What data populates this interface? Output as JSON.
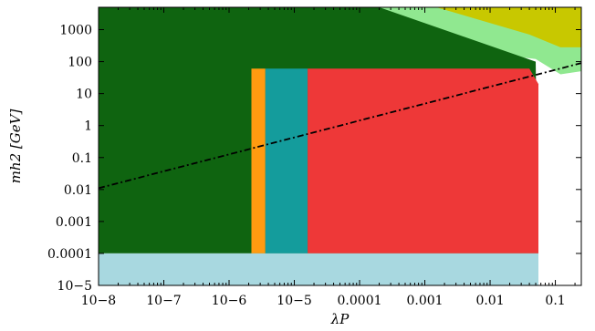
{
  "chart_data": {
    "type": "scatter",
    "title": "",
    "xscale": "log",
    "yscale": "log",
    "xlim": [
      1e-08,
      0.25
    ],
    "ylim": [
      1e-05,
      5000
    ],
    "xlabel": "λP",
    "ylabel": "mh2 [GeV]",
    "x_ticks": [
      {
        "value": 1e-08,
        "label": "10−8"
      },
      {
        "value": 1e-07,
        "label": "10−7"
      },
      {
        "value": 1e-06,
        "label": "10−6"
      },
      {
        "value": 1e-05,
        "label": "10−5"
      },
      {
        "value": 0.0001,
        "label": "0.0001"
      },
      {
        "value": 0.001,
        "label": "0.001"
      },
      {
        "value": 0.01,
        "label": "0.01"
      },
      {
        "value": 0.1,
        "label": "0.1"
      }
    ],
    "y_ticks": [
      {
        "value": 1e-05,
        "label": "10−5"
      },
      {
        "value": 0.0001,
        "label": "0.0001"
      },
      {
        "value": 0.001,
        "label": "0.001"
      },
      {
        "value": 0.01,
        "label": "0.01"
      },
      {
        "value": 0.1,
        "label": "0.1"
      },
      {
        "value": 1,
        "label": "1"
      },
      {
        "value": 10,
        "label": "10"
      },
      {
        "value": 100,
        "label": "100"
      },
      {
        "value": 1000,
        "label": "1000"
      }
    ],
    "series": [
      {
        "color": "#90e890",
        "region": "band upper edge",
        "polygon": [
          [
            1e-08,
            5000
          ],
          [
            0.25,
            5000
          ],
          [
            0.25,
            50
          ],
          [
            0.12,
            40
          ],
          [
            0.05,
            120
          ],
          [
            1e-08,
            5000
          ]
        ]
      },
      {
        "color": "#c8c800",
        "region": "top-right corner",
        "polygon": [
          [
            0.0015,
            5000
          ],
          [
            0.25,
            5000
          ],
          [
            0.25,
            280
          ],
          [
            0.12,
            280
          ],
          [
            0.04,
            700
          ],
          [
            0.0015,
            5000
          ]
        ]
      },
      {
        "color": "#0f6410",
        "region": "dark green fill",
        "polygon": [
          [
            1e-08,
            5000
          ],
          [
            0.0002,
            5000
          ],
          [
            0.05,
            100
          ],
          [
            0.055,
            0.0001
          ],
          [
            1e-08,
            0.0001
          ]
        ]
      },
      {
        "color": "#ff9b10",
        "region": "orange strip",
        "polygon": [
          [
            2.2e-06,
            60
          ],
          [
            3.6e-06,
            60
          ],
          [
            3.6e-06,
            0.0001
          ],
          [
            2.2e-06,
            0.0001
          ]
        ]
      },
      {
        "color": "#149c9c",
        "region": "teal strip",
        "polygon": [
          [
            3.6e-06,
            60
          ],
          [
            1.6e-05,
            60
          ],
          [
            1.6e-05,
            0.0001
          ],
          [
            3.6e-06,
            0.0001
          ]
        ]
      },
      {
        "color": "#ee3838",
        "region": "red block",
        "polygon": [
          [
            1.6e-05,
            60
          ],
          [
            0.04,
            60
          ],
          [
            0.055,
            20
          ],
          [
            0.055,
            0.0001
          ],
          [
            1.6e-05,
            0.0001
          ]
        ]
      },
      {
        "color": "#a8d8e0",
        "region": "light blue band",
        "polygon": [
          [
            1e-08,
            0.0001
          ],
          [
            0.055,
            0.0001
          ],
          [
            0.055,
            1e-05
          ],
          [
            1e-08,
            1e-05
          ]
        ]
      }
    ],
    "line": {
      "color": "#000000",
      "style": "dash-dot",
      "x": [
        1e-08,
        0.25
      ],
      "y": [
        0.011,
        90
      ]
    }
  }
}
